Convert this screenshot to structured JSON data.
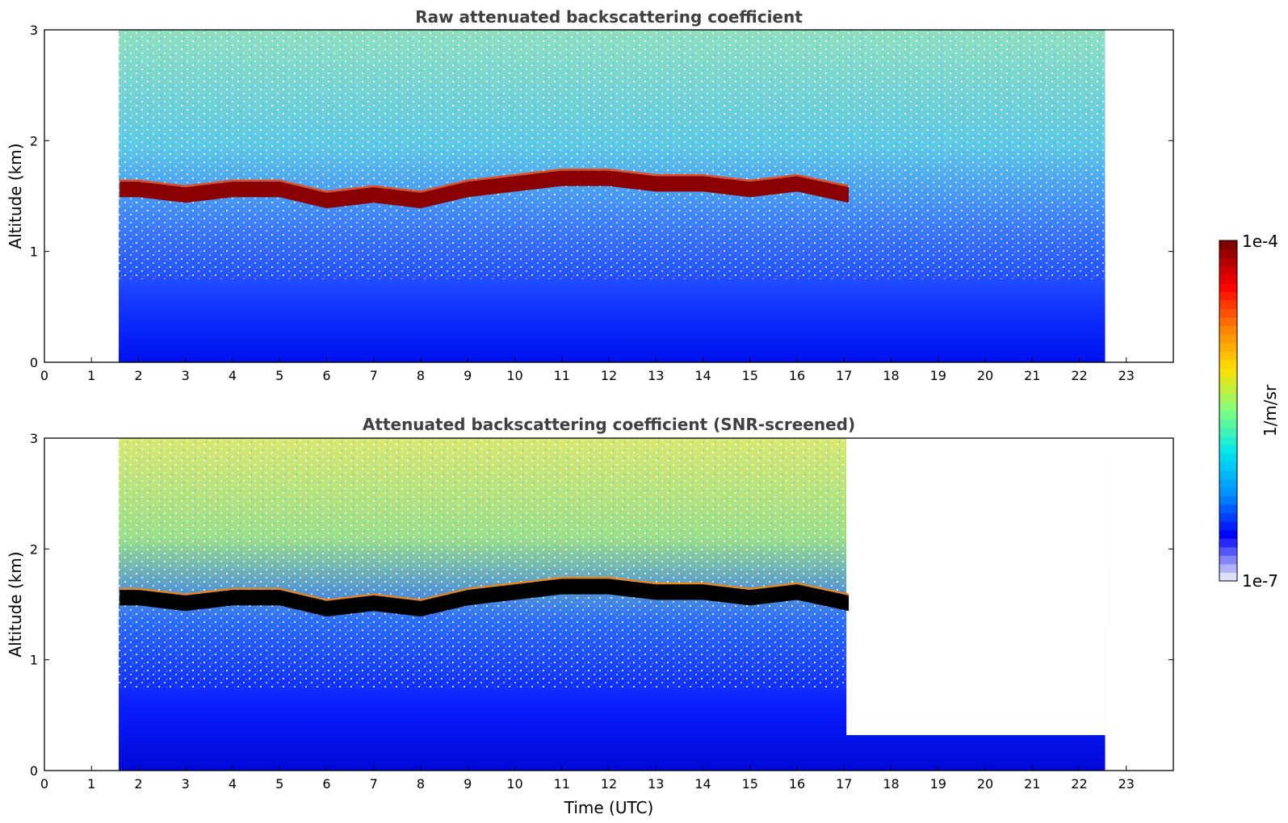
{
  "chart_data": [
    {
      "type": "heatmap",
      "title": "Raw attenuated backscattering coefficient",
      "ylabel": "Altitude (km)",
      "xlabel": "",
      "xlim": [
        0,
        24
      ],
      "ylim": [
        0,
        3
      ],
      "x_ticks": [
        "0",
        "1",
        "2",
        "3",
        "4",
        "5",
        "6",
        "7",
        "8",
        "9",
        "10",
        "11",
        "12",
        "13",
        "14",
        "15",
        "16",
        "17",
        "18",
        "19",
        "20",
        "21",
        "22",
        "23"
      ],
      "y_ticks": [
        "0",
        "1",
        "2",
        "3"
      ],
      "data_coverage_hours": [
        1.58,
        22.55
      ],
      "cloud_base_time_utc": [
        1.6,
        2,
        3,
        4,
        5,
        6,
        7,
        8,
        9,
        10,
        11,
        12,
        13,
        14,
        15,
        16,
        17.1
      ],
      "cloud_base_altitude_km": [
        1.55,
        1.55,
        1.5,
        1.55,
        1.55,
        1.45,
        1.5,
        1.45,
        1.55,
        1.6,
        1.65,
        1.65,
        1.6,
        1.6,
        1.55,
        1.6,
        1.5
      ]
    },
    {
      "type": "heatmap",
      "title": "Attenuated backscattering coefficient (SNR-screened)",
      "ylabel": "Altitude (km)",
      "xlabel": "Time (UTC)",
      "xlim": [
        0,
        24
      ],
      "ylim": [
        0,
        3
      ],
      "x_ticks": [
        "0",
        "1",
        "2",
        "3",
        "4",
        "5",
        "6",
        "7",
        "8",
        "9",
        "10",
        "11",
        "12",
        "13",
        "14",
        "15",
        "16",
        "17",
        "18",
        "19",
        "20",
        "21",
        "22",
        "23"
      ],
      "y_ticks": [
        "0",
        "1",
        "2",
        "3"
      ],
      "data_coverage_hours": [
        1.58,
        22.55
      ],
      "screened_low_layer_top_km": 0.32,
      "cloud_base_time_utc": [
        1.6,
        2,
        3,
        4,
        5,
        6,
        7,
        8,
        9,
        10,
        11,
        12,
        13,
        14,
        15,
        16,
        17.1
      ],
      "cloud_base_altitude_km": [
        1.55,
        1.55,
        1.5,
        1.55,
        1.55,
        1.45,
        1.5,
        1.45,
        1.55,
        1.6,
        1.65,
        1.65,
        1.6,
        1.6,
        1.55,
        1.6,
        1.5
      ]
    }
  ],
  "colorbar": {
    "label": "1/m/sr",
    "max_label": "1e-4",
    "min_label": "1e-7",
    "scale": "log",
    "colormap": [
      "#dde0f8",
      "#0000ff",
      "#0090ff",
      "#00e5ee",
      "#7fff7f",
      "#ffe000",
      "#ff8000",
      "#ff0000",
      "#800000"
    ]
  },
  "colors": {
    "cloud": "#8b0000",
    "cloud_screened": "#000000",
    "low_signal": "#0a1fff"
  }
}
